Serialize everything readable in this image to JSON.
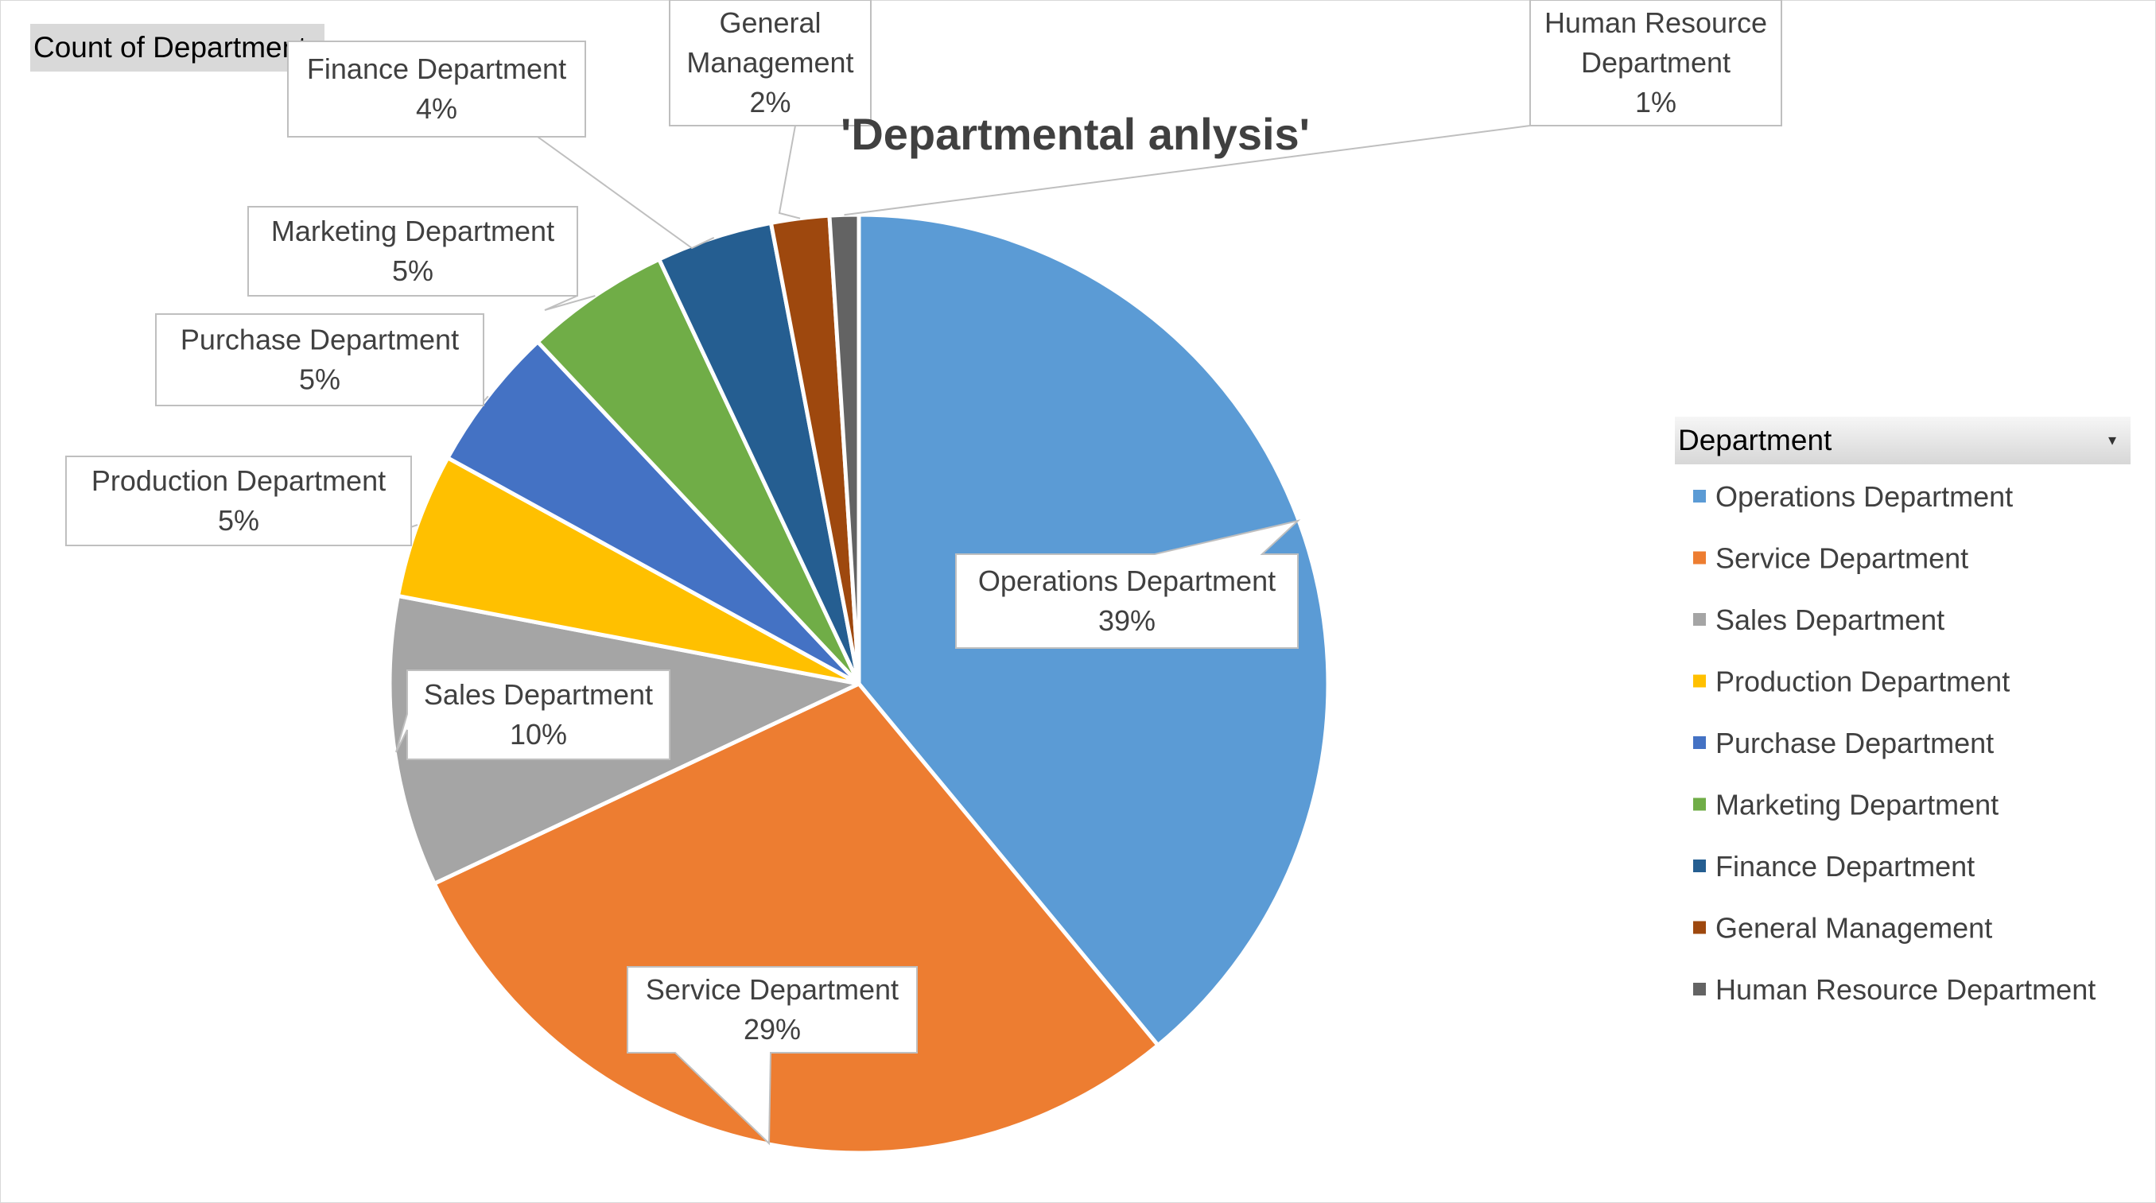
{
  "field_buttons": {
    "value_field": "Count of Department",
    "legend_field": "Department",
    "dropdown_glyph": "▾"
  },
  "chart_data": {
    "type": "pie",
    "title": "'Departmental anlysis'",
    "categories": [
      "Operations Department",
      "Service Department",
      "Sales Department",
      "Production Department",
      "Purchase Department",
      "Marketing Department",
      "Finance Department",
      "General Management",
      "Human Resource Department"
    ],
    "values": [
      39,
      29,
      10,
      5,
      5,
      5,
      4,
      2,
      1
    ],
    "percent_labels": [
      "39%",
      "29%",
      "10%",
      "5%",
      "5%",
      "5%",
      "4%",
      "2%",
      "1%"
    ],
    "label_lines": [
      [
        "Operations Department"
      ],
      [
        "Service Department"
      ],
      [
        "Sales Department"
      ],
      [
        "Production Department"
      ],
      [
        "Purchase Department"
      ],
      [
        "Marketing Department"
      ],
      [
        "Finance Department"
      ],
      [
        "General",
        "Management"
      ],
      [
        "Human Resource",
        "Department"
      ]
    ],
    "colors": [
      "#5B9BD5",
      "#ED7D31",
      "#A5A5A5",
      "#FFC000",
      "#4472C4",
      "#70AD47",
      "#255E91",
      "#9E480E",
      "#636363"
    ],
    "legend_position": "right"
  }
}
